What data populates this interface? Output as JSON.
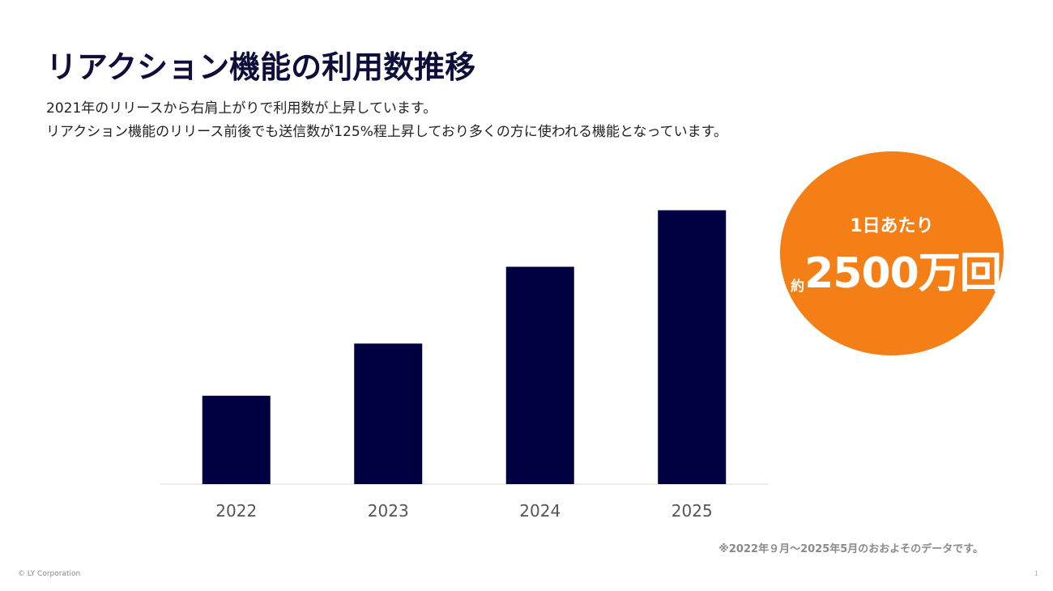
{
  "header": {
    "title": "リアクション機能の利用数推移",
    "desc_line1": "2021年のリリースから右肩上がりで利用数が上昇しています。",
    "desc_line2": "リアクション機能のリリース前後でも送信数が125%程上昇しており多くの方に使われる機能となっています。"
  },
  "chart_data": {
    "type": "bar",
    "categories": [
      "2022",
      "2023",
      "2024",
      "2025"
    ],
    "values": [
      30.5,
      48.5,
      75,
      94.5
    ],
    "ylim": [
      0,
      100
    ],
    "grid": false,
    "legend": "none",
    "bar_color": "#000040",
    "axis_color": "#d9d9d9",
    "tick_color": "#555555"
  },
  "badge": {
    "label": "1日あたり",
    "prefix": "約",
    "value": "2500万回",
    "color": "#f47f16"
  },
  "note": "※2022年９月〜2025年5月のおおよそのデータです。",
  "footer": {
    "copyright": "© LY Corporation",
    "page": "1"
  }
}
